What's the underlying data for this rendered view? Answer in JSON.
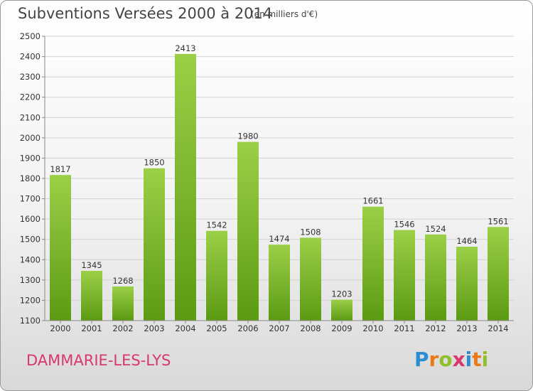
{
  "header": {
    "title": "Subventions Versées 2000 à 2014",
    "subtitle": "(en milliers d'€)"
  },
  "footer": {
    "commune": "DAMMARIE-LES-LYS",
    "logo_text": "Proxiti"
  },
  "colors": {
    "bar_top": "#9ccf48",
    "bar_bottom": "#5c9a14",
    "commune": "#d9376e",
    "logo_p": "#2b8ed3",
    "logo_r": "#e87a1a",
    "logo_o": "#8fbf2b",
    "logo_x": "#d9376e",
    "logo_i": "#2b8ed3",
    "logo_t": "#e87a1a",
    "logo_i2": "#8fbf2b"
  },
  "chart_data": {
    "type": "bar",
    "title": "Subventions Versées 2000 à 2014",
    "subtitle": "(en milliers d'€)",
    "categories": [
      "2000",
      "2001",
      "2002",
      "2003",
      "2004",
      "2005",
      "2006",
      "2007",
      "2008",
      "2009",
      "2010",
      "2011",
      "2012",
      "2013",
      "2014"
    ],
    "values": [
      1817,
      1345,
      1268,
      1850,
      2413,
      1542,
      1980,
      1474,
      1508,
      1203,
      1661,
      1546,
      1524,
      1464,
      1561
    ],
    "ylim": [
      1100,
      2500
    ],
    "yticks": [
      1100,
      1200,
      1300,
      1400,
      1500,
      1600,
      1700,
      1800,
      1900,
      2000,
      2100,
      2200,
      2300,
      2400,
      2500
    ],
    "grid": true,
    "xlabel": "",
    "ylabel": ""
  }
}
